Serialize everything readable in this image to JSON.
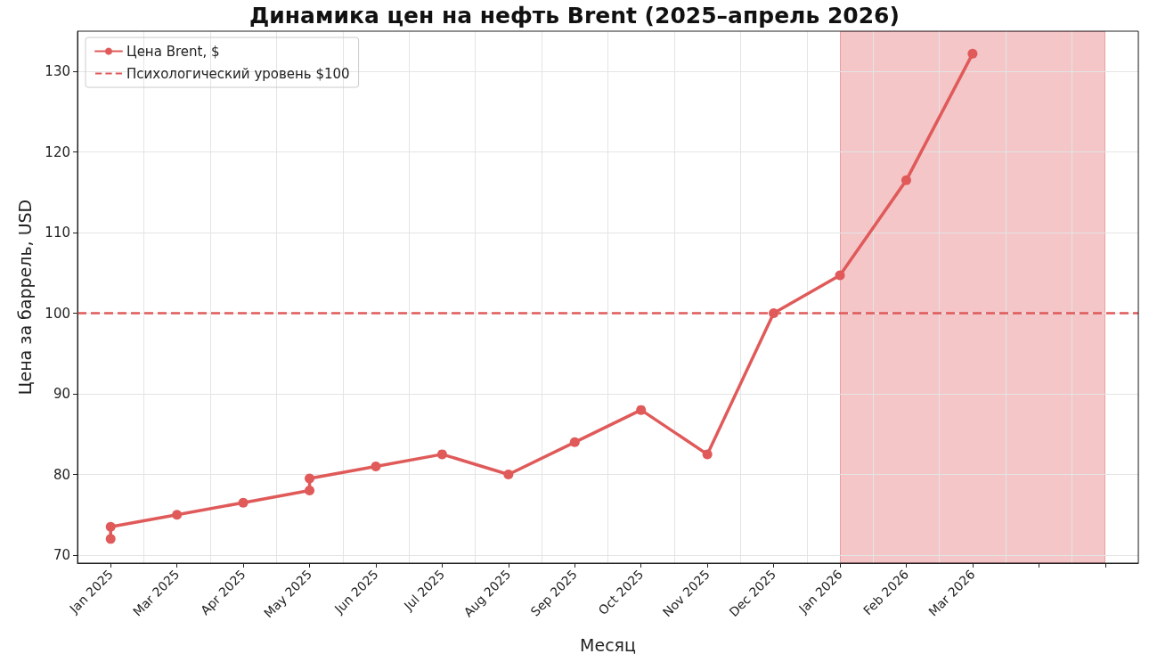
{
  "chart_data": {
    "type": "line",
    "title": "Динамика цен на нефть Brent (2025–апрель 2026)",
    "xlabel": "Месяц",
    "ylabel": "Цена за баррель, USD",
    "categories": [
      "Jan 2025",
      "Mar 2025",
      "Apr 2025",
      "May 2025",
      "Jun 2025",
      "Jul 2025",
      "Aug 2025",
      "Sep 2025",
      "Oct 2025",
      "Nov 2025",
      "Dec 2025",
      "Jan 2026",
      "Feb 2026",
      "Mar 2026",
      null,
      null
    ],
    "series": [
      {
        "name": "Цена Brent, $",
        "color": "#e05a5a",
        "x": [
          "Jan 2025",
          "Jan 2025",
          "Mar 2025",
          "Apr 2025",
          "May 2025",
          "May 2025",
          "Jun 2025",
          "Jul 2025",
          "Aug 2025",
          "Sep 2025",
          "Oct 2025",
          "Nov 2025",
          "Dec 2025",
          "Jan 2026",
          "Feb 2026",
          "Mar 2026"
        ],
        "values": [
          72,
          73.5,
          75,
          76.5,
          78,
          79.5,
          81,
          82.5,
          80,
          84,
          88,
          82.5,
          100,
          104.7,
          116.5,
          132.2
        ]
      }
    ],
    "ref_lines": [
      {
        "axis": "y",
        "value": 100,
        "label": "Психологический уровень $100",
        "color": "#e05a5a",
        "line_style": "dashed"
      }
    ],
    "ylim": [
      69,
      135
    ],
    "yticks": [
      70,
      80,
      90,
      100,
      110,
      120,
      130
    ],
    "grid": true,
    "legend": "top left",
    "marker": "circle",
    "line_style": "solid"
  }
}
